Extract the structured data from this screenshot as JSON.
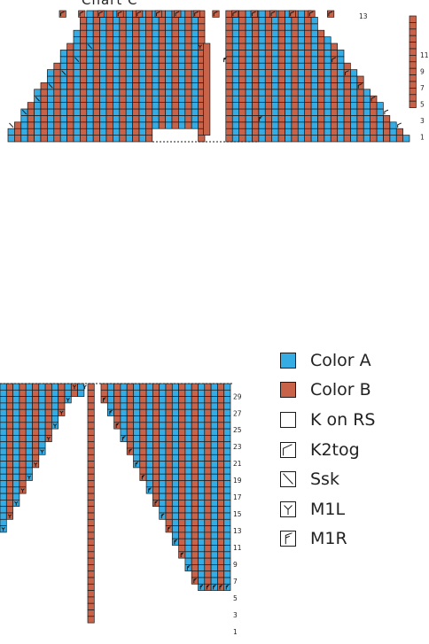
{
  "chart_caption": "Chart C",
  "colors": {
    "color_a": "#35ace4",
    "color_b": "#c8634a",
    "grid": "#1a1a1a"
  },
  "top_chart": {
    "row_labels": [
      "1",
      "3",
      "5",
      "7",
      "9",
      "11",
      "13"
    ],
    "symbols_used": [
      "color-a",
      "color-b",
      "k2tog",
      "ssk",
      "m1l",
      "m1r"
    ]
  },
  "bottom_chart": {
    "row_labels": [
      "1",
      "3",
      "5",
      "7",
      "9",
      "11",
      "13",
      "15",
      "17",
      "19",
      "21",
      "23",
      "25",
      "27",
      "29"
    ],
    "symbols_used": [
      "color-a",
      "color-b",
      "m1l",
      "m1r"
    ]
  },
  "legend": [
    {
      "key": "color-a",
      "label": "Color A"
    },
    {
      "key": "color-b",
      "label": "Color B"
    },
    {
      "key": "k-on-rs",
      "label": "K on RS"
    },
    {
      "key": "k2tog",
      "label": "K2tog"
    },
    {
      "key": "ssk",
      "label": "Ssk"
    },
    {
      "key": "m1l",
      "label": "M1L"
    },
    {
      "key": "m1r",
      "label": "M1R"
    }
  ]
}
